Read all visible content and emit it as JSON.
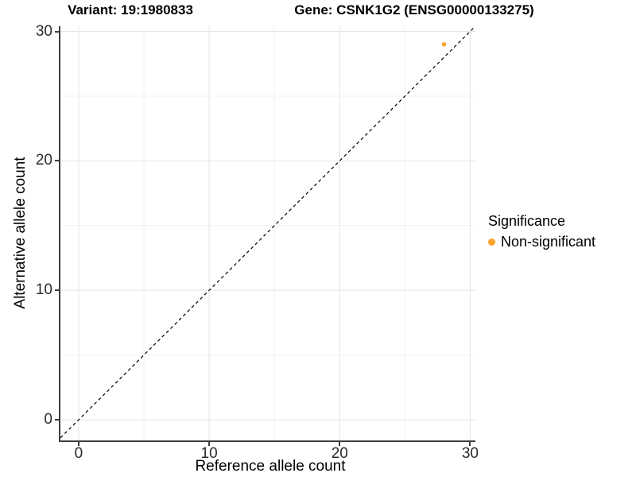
{
  "header": {
    "variant_title": "Variant: 19:1980833",
    "gene_title": "Gene: CSNK1G2 (ENSG00000133275)"
  },
  "chart_data": {
    "type": "scatter",
    "title_left": "Variant: 19:1980833",
    "title_right": "Gene: CSNK1G2 (ENSG00000133275)",
    "xlabel": "Reference allele count",
    "ylabel": "Alternative allele count",
    "xlim": [
      -1.4,
      30.4
    ],
    "ylim": [
      -1.6,
      30.4
    ],
    "x_ticks": [
      0,
      10,
      20,
      30
    ],
    "y_ticks": [
      0,
      10,
      20,
      30
    ],
    "x_minor_ticks": [
      5,
      15,
      25
    ],
    "y_minor_ticks": [
      5,
      15,
      25
    ],
    "grid": "major+minor",
    "points": [
      {
        "x": 28,
        "y": 29,
        "series": "Non-significant"
      }
    ],
    "identity_line": {
      "slope": 1,
      "intercept": 0,
      "style": "dashed",
      "color": "#000000"
    },
    "legend": {
      "title": "Significance",
      "position": "right",
      "items": [
        {
          "label": "Non-significant",
          "color": "#FCA32B"
        }
      ]
    },
    "colors": {
      "point": "#FCA32B",
      "major_grid": "#e4e4e4",
      "minor_grid": "#f2f2f2",
      "axis_line": "#3f3f3f",
      "tick_label": "#2b2b2b"
    }
  }
}
